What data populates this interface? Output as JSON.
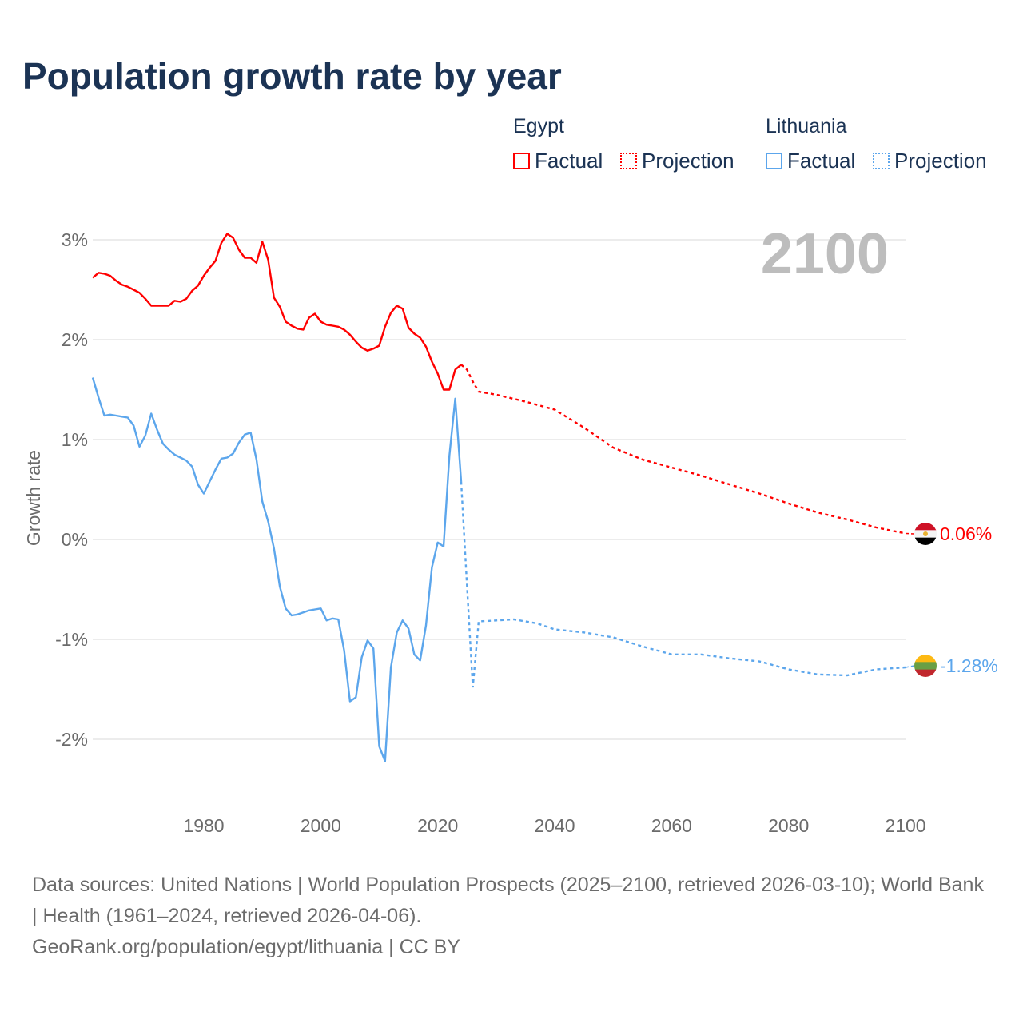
{
  "title": "Population growth rate by year",
  "legend": {
    "groups": [
      {
        "name": "Egypt",
        "factual": "Factual",
        "projection": "Projection",
        "color": "#ff0000"
      },
      {
        "name": "Lithuania",
        "factual": "Factual",
        "projection": "Projection",
        "color": "#5ca6ec"
      }
    ]
  },
  "footer": {
    "sources": "Data sources: United Nations | World Population Prospects (2025–2100, retrieved 2026-03-10); World Bank | Health (1961–2024, retrieved 2026-04-06).",
    "credit": "GeoRank.org/population/egypt/lithuania | CC BY"
  },
  "chart_data": {
    "type": "line",
    "title": "Population growth rate by year",
    "xlabel": "",
    "ylabel": "Growth rate",
    "year_label": "2100",
    "xlim": [
      1961,
      2100
    ],
    "ylim": [
      -2.6,
      3.3
    ],
    "x_ticks": [
      1980,
      2000,
      2020,
      2040,
      2060,
      2080,
      2100
    ],
    "y_ticks": [
      3,
      2,
      1,
      0,
      -1,
      -2
    ],
    "y_tick_labels": [
      "3%",
      "2%",
      "1%",
      "0%",
      "-1%",
      "-2%"
    ],
    "grid": true,
    "legend_position": "top-right",
    "series": [
      {
        "name": "Egypt",
        "color": "#ff0000",
        "end_label": "0.06%",
        "factual": {
          "start_year": 1961,
          "values": [
            2.62,
            2.67,
            2.66,
            2.64,
            2.59,
            2.55,
            2.53,
            2.5,
            2.47,
            2.41,
            2.34,
            2.34,
            2.34,
            2.34,
            2.39,
            2.38,
            2.41,
            2.49,
            2.54,
            2.64,
            2.72,
            2.79,
            2.97,
            3.06,
            3.02,
            2.9,
            2.82,
            2.82,
            2.77,
            2.98,
            2.8,
            2.42,
            2.33,
            2.18,
            2.14,
            2.11,
            2.1,
            2.22,
            2.26,
            2.18,
            2.15,
            2.14,
            2.13,
            2.1,
            2.05,
            1.98,
            1.92,
            1.89,
            1.91,
            1.94,
            2.13,
            2.27,
            2.34,
            2.31,
            2.12,
            2.06,
            2.02,
            1.93,
            1.78,
            1.66,
            1.5,
            1.5,
            1.7,
            1.75
          ]
        },
        "projection": {
          "years": [
            2024,
            2025,
            2026,
            2027,
            2030,
            2035,
            2040,
            2045,
            2050,
            2055,
            2060,
            2065,
            2070,
            2075,
            2080,
            2085,
            2090,
            2095,
            2100
          ],
          "values": [
            1.75,
            1.7,
            1.58,
            1.48,
            1.45,
            1.38,
            1.3,
            1.12,
            0.92,
            0.8,
            0.72,
            0.64,
            0.55,
            0.46,
            0.36,
            0.27,
            0.2,
            0.12,
            0.06
          ]
        }
      },
      {
        "name": "Lithuania",
        "color": "#5ca6ec",
        "end_label": "-1.28%",
        "factual": {
          "start_year": 1961,
          "values": [
            1.62,
            1.42,
            1.24,
            1.25,
            1.24,
            1.23,
            1.22,
            1.14,
            0.93,
            1.04,
            1.26,
            1.1,
            0.96,
            0.9,
            0.85,
            0.82,
            0.79,
            0.73,
            0.55,
            0.46,
            0.58,
            0.7,
            0.81,
            0.82,
            0.86,
            0.97,
            1.05,
            1.07,
            0.8,
            0.38,
            0.18,
            -0.09,
            -0.47,
            -0.69,
            -0.76,
            -0.75,
            -0.73,
            -0.71,
            -0.7,
            -0.69,
            -0.81,
            -0.79,
            -0.8,
            -1.11,
            -1.62,
            -1.58,
            -1.18,
            -1.01,
            -1.09,
            -2.07,
            -2.22,
            -1.28,
            -0.93,
            -0.81,
            -0.89,
            -1.15,
            -1.21,
            -0.86,
            -0.28,
            -0.03,
            -0.07,
            0.84,
            1.41,
            0.58
          ]
        },
        "projection": {
          "years": [
            2024,
            2025,
            2026,
            2027,
            2030,
            2033,
            2037,
            2040,
            2045,
            2050,
            2055,
            2060,
            2065,
            2070,
            2075,
            2080,
            2085,
            2090,
            2095,
            2100
          ],
          "values": [
            0.58,
            -0.46,
            -1.48,
            -0.82,
            -0.81,
            -0.8,
            -0.84,
            -0.9,
            -0.93,
            -0.98,
            -1.07,
            -1.15,
            -1.15,
            -1.19,
            -1.22,
            -1.3,
            -1.35,
            -1.36,
            -1.3,
            -1.28
          ]
        }
      }
    ]
  }
}
